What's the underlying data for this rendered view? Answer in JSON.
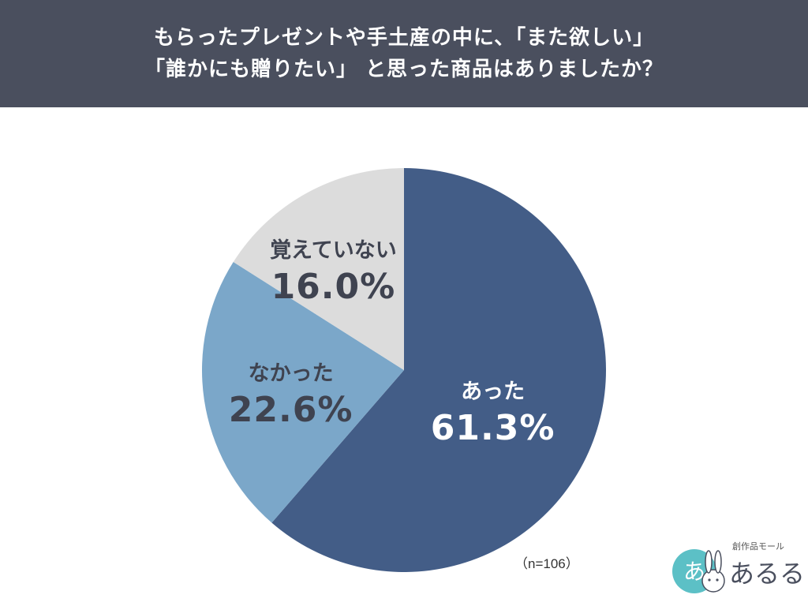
{
  "header": {
    "line1": "もらったプレゼントや手土産の中に、「また欲しい」",
    "line2": "「誰かにも贈りたい」 と思った商品はありましたか？"
  },
  "chart_data": {
    "type": "pie",
    "slices": [
      {
        "label": "あった",
        "value": 61.3,
        "display": "61.3%",
        "color": "#435d87"
      },
      {
        "label": "なかった",
        "value": 22.6,
        "display": "22.6%",
        "color": "#7ba7c9"
      },
      {
        "label": "覚えていない",
        "value": 16.0,
        "display": "16.0%",
        "color": "#dcdcdc"
      }
    ],
    "start_angle": "12 o'clock",
    "direction": "clockwise",
    "sample_note": "（n=106）"
  },
  "logo": {
    "subtitle": "創作品モール",
    "name": "あるる",
    "mark_text": "あ",
    "mark_color": "#5cc0c6"
  }
}
